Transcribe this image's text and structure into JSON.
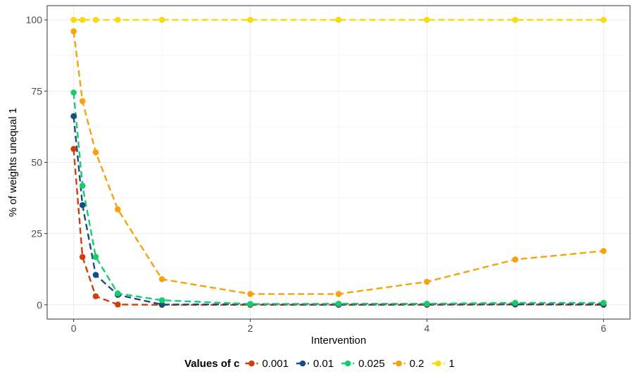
{
  "chart_data": {
    "type": "line",
    "title": "",
    "xlabel": "Intervention",
    "ylabel": "% of weights unequal 1",
    "xlim": [
      -0.3,
      6.3
    ],
    "ylim": [
      -5,
      105
    ],
    "x_ticks": [
      0,
      2,
      4,
      6
    ],
    "y_ticks": [
      0,
      25,
      50,
      75,
      100
    ],
    "grid": true,
    "line_style": "dashed",
    "legend": {
      "title": "Values of c",
      "position": "bottom"
    },
    "x": [
      0,
      0.1,
      0.25,
      0.5,
      1,
      2,
      3,
      4,
      5,
      6
    ],
    "series": [
      {
        "name": "0.001",
        "color": "#D03F0B",
        "values": [
          54.7,
          16.8,
          3.0,
          0.1,
          0.0,
          0.0,
          0.0,
          0.0,
          0.1,
          0.0
        ]
      },
      {
        "name": "0.01",
        "color": "#174E82",
        "values": [
          66.2,
          35.0,
          10.5,
          3.5,
          0.1,
          0.2,
          0.1,
          0.2,
          0.2,
          0.2
        ]
      },
      {
        "name": "0.025",
        "color": "#16CC6D",
        "values": [
          74.5,
          41.8,
          16.8,
          4.0,
          1.6,
          0.3,
          0.4,
          0.4,
          0.7,
          0.7
        ]
      },
      {
        "name": "0.2",
        "color": "#F7A10B",
        "values": [
          96.0,
          71.5,
          53.5,
          33.5,
          9.0,
          3.8,
          3.8,
          8.1,
          15.9,
          18.9
        ]
      },
      {
        "name": "1",
        "color": "#FAD90F",
        "values": [
          100,
          100,
          100,
          100,
          100,
          100,
          100,
          100,
          100,
          100
        ]
      }
    ]
  }
}
